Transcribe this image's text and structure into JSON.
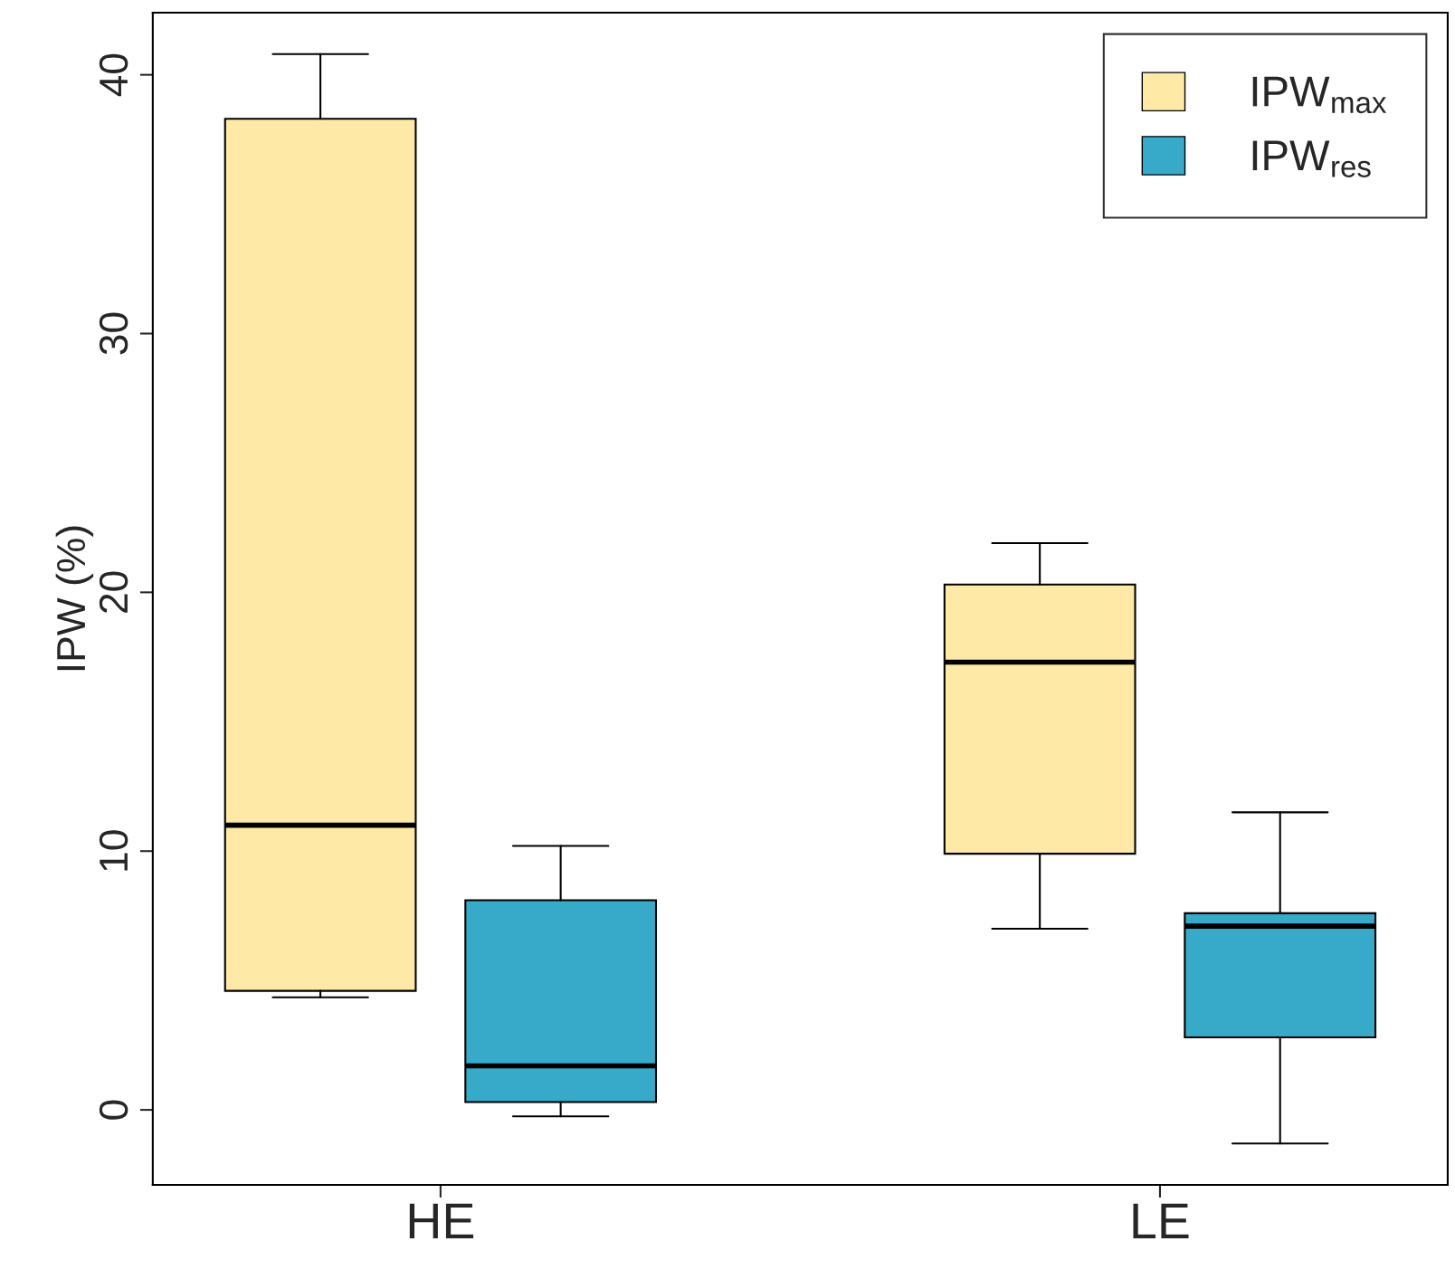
{
  "chart_data": {
    "type": "box",
    "ylabel": "IPW (%)",
    "categories": [
      "HE",
      "LE"
    ],
    "series": [
      {
        "name": "IPW$_{max}$",
        "color": "#fee9a6",
        "boxes": [
          {
            "low": 4.35,
            "q1": 4.6,
            "median": 11.0,
            "q3": 38.3,
            "high": 40.8
          },
          {
            "low": 7.0,
            "q1": 9.9,
            "median": 17.3,
            "q3": 20.3,
            "high": 21.9
          }
        ]
      },
      {
        "name": "IPW$_{res}$",
        "color": "#37a9c9",
        "boxes": [
          {
            "low": -0.25,
            "q1": 0.3,
            "median": 1.7,
            "q3": 8.1,
            "high": 10.2
          },
          {
            "low": -1.3,
            "q1": 2.8,
            "median": 7.1,
            "q3": 7.6,
            "high": 11.5
          }
        ]
      }
    ],
    "ylim": [
      -2.9,
      42.4
    ],
    "yticks": [
      0,
      10,
      20,
      30,
      40
    ],
    "grid": false,
    "legend": "top right"
  }
}
